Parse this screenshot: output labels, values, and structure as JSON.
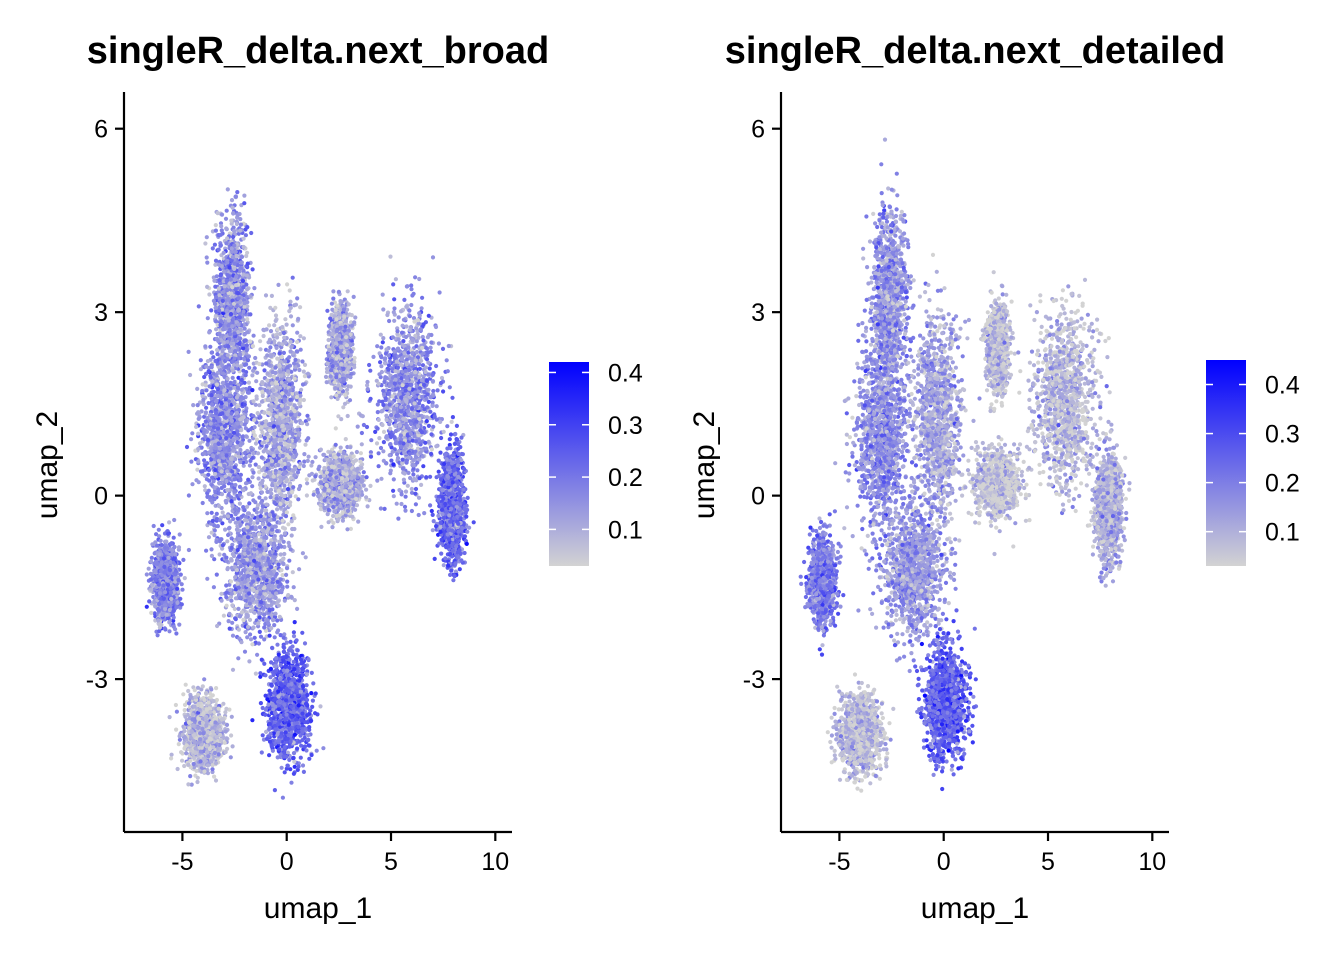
{
  "chart_data": [
    {
      "type": "scatter",
      "title": "singleR_delta.next_broad",
      "xlabel": "umap_1",
      "ylabel": "umap_2",
      "xlim": [
        -7.8,
        10.8
      ],
      "ylim": [
        -5.5,
        6.6
      ],
      "xticks": [
        -5,
        0,
        5,
        10
      ],
      "xtick_labels": [
        "-5",
        "0",
        "5",
        "10"
      ],
      "yticks": [
        -3,
        0,
        3,
        6
      ],
      "ytick_labels": [
        "-3",
        "0",
        "3",
        "6"
      ],
      "color_scale": {
        "low_color": "#d3d3d3",
        "high_color": "#0000ff",
        "min": 0.03,
        "max": 0.42,
        "ticks": [
          0.1,
          0.2,
          0.3,
          0.4
        ],
        "tick_labels": [
          "0.1",
          "0.2",
          "0.3",
          "0.4"
        ]
      },
      "regions": [
        {
          "name": "top-spike",
          "center": [
            -2.6,
            3.2
          ],
          "spread": [
            0.75,
            1.2
          ],
          "mean_value": 0.15
        },
        {
          "name": "left-upper-body",
          "center": [
            -3.0,
            1.0
          ],
          "spread": [
            1.1,
            1.3
          ],
          "mean_value": 0.16
        },
        {
          "name": "center-column",
          "center": [
            -0.3,
            1.2
          ],
          "spread": [
            1.0,
            1.5
          ],
          "mean_value": 0.12
        },
        {
          "name": "center-lower",
          "center": [
            -1.5,
            -1.2
          ],
          "spread": [
            1.3,
            1.0
          ],
          "mean_value": 0.14
        },
        {
          "name": "left-lobe",
          "center": [
            -5.8,
            -1.4
          ],
          "spread": [
            0.55,
            0.6
          ],
          "mean_value": 0.18
        },
        {
          "name": "bottom-left",
          "center": [
            -4.0,
            -3.9
          ],
          "spread": [
            0.9,
            0.55
          ],
          "mean_value": 0.08
        },
        {
          "name": "bottom-right",
          "center": [
            0.1,
            -3.4
          ],
          "spread": [
            0.9,
            0.8
          ],
          "mean_value": 0.24
        },
        {
          "name": "right-cluster",
          "center": [
            5.8,
            1.6
          ],
          "spread": [
            1.3,
            1.3
          ],
          "mean_value": 0.16
        },
        {
          "name": "right-tail",
          "center": [
            7.9,
            -0.2
          ],
          "spread": [
            0.55,
            0.8
          ],
          "mean_value": 0.22
        },
        {
          "name": "right-shoulder",
          "center": [
            2.6,
            2.4
          ],
          "spread": [
            0.45,
            0.6
          ],
          "mean_value": 0.12
        },
        {
          "name": "bridge",
          "center": [
            2.6,
            0.2
          ],
          "spread": [
            0.9,
            0.45
          ],
          "mean_value": 0.1
        }
      ]
    },
    {
      "type": "scatter",
      "title": "singleR_delta.next_detailed",
      "xlabel": "umap_1",
      "ylabel": "umap_2",
      "xlim": [
        -7.8,
        10.8
      ],
      "ylim": [
        -5.5,
        6.6
      ],
      "xticks": [
        -5,
        0,
        5,
        10
      ],
      "xtick_labels": [
        "-5",
        "0",
        "5",
        "10"
      ],
      "yticks": [
        -3,
        0,
        3,
        6
      ],
      "ytick_labels": [
        "-3",
        "0",
        "3",
        "6"
      ],
      "color_scale": {
        "low_color": "#d3d3d3",
        "high_color": "#0000ff",
        "min": 0.03,
        "max": 0.45,
        "ticks": [
          0.1,
          0.2,
          0.3,
          0.4
        ],
        "tick_labels": [
          "0.1",
          "0.2",
          "0.3",
          "0.4"
        ]
      },
      "regions": [
        {
          "name": "top-spike",
          "center": [
            -2.6,
            3.2
          ],
          "spread": [
            0.75,
            1.2
          ],
          "mean_value": 0.16
        },
        {
          "name": "left-upper-body",
          "center": [
            -3.0,
            1.0
          ],
          "spread": [
            1.1,
            1.3
          ],
          "mean_value": 0.17
        },
        {
          "name": "center-column",
          "center": [
            -0.3,
            1.2
          ],
          "spread": [
            1.0,
            1.5
          ],
          "mean_value": 0.12
        },
        {
          "name": "center-lower",
          "center": [
            -1.5,
            -1.2
          ],
          "spread": [
            1.3,
            1.0
          ],
          "mean_value": 0.15
        },
        {
          "name": "left-lobe",
          "center": [
            -5.8,
            -1.4
          ],
          "spread": [
            0.55,
            0.6
          ],
          "mean_value": 0.2
        },
        {
          "name": "bottom-left",
          "center": [
            -4.0,
            -3.9
          ],
          "spread": [
            0.9,
            0.55
          ],
          "mean_value": 0.07
        },
        {
          "name": "bottom-right",
          "center": [
            0.1,
            -3.4
          ],
          "spread": [
            0.9,
            0.8
          ],
          "mean_value": 0.26
        },
        {
          "name": "right-cluster",
          "center": [
            5.8,
            1.6
          ],
          "spread": [
            1.3,
            1.3
          ],
          "mean_value": 0.08
        },
        {
          "name": "right-tail",
          "center": [
            7.9,
            -0.2
          ],
          "spread": [
            0.55,
            0.8
          ],
          "mean_value": 0.1
        },
        {
          "name": "right-shoulder",
          "center": [
            2.6,
            2.4
          ],
          "spread": [
            0.45,
            0.6
          ],
          "mean_value": 0.07
        },
        {
          "name": "bridge",
          "center": [
            2.6,
            0.2
          ],
          "spread": [
            0.9,
            0.45
          ],
          "mean_value": 0.06
        }
      ]
    }
  ]
}
